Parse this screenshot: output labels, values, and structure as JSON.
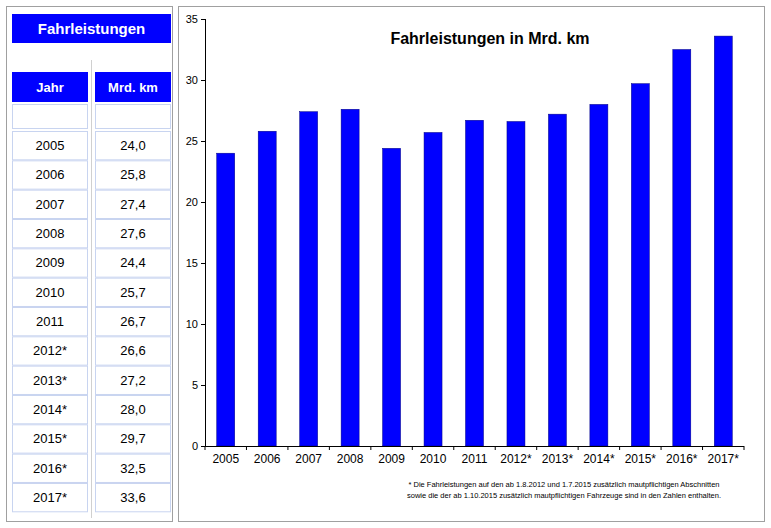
{
  "table": {
    "title": "Fahrleistungen",
    "headers": [
      "Jahr",
      "Mrd. km"
    ],
    "rows": [
      [
        "2005",
        "24,0"
      ],
      [
        "2006",
        "25,8"
      ],
      [
        "2007",
        "27,4"
      ],
      [
        "2008",
        "27,6"
      ],
      [
        "2009",
        "24,4"
      ],
      [
        "2010",
        "25,7"
      ],
      [
        "2011",
        "26,7"
      ],
      [
        "2012*",
        "26,6"
      ],
      [
        "2013*",
        "27,2"
      ],
      [
        "2014*",
        "28,0"
      ],
      [
        "2015*",
        "29,7"
      ],
      [
        "2016*",
        "32,5"
      ],
      [
        "2017*",
        "33,6"
      ]
    ]
  },
  "chart_data": {
    "type": "bar",
    "title": "Fahrleistungen in Mrd. km",
    "categories": [
      "2005",
      "2006",
      "2007",
      "2008",
      "2009",
      "2010",
      "2011",
      "2012*",
      "2013*",
      "2014*",
      "2015*",
      "2016*",
      "2017*"
    ],
    "values": [
      24.0,
      25.8,
      27.4,
      27.6,
      24.4,
      25.7,
      26.7,
      26.6,
      27.2,
      28.0,
      29.7,
      32.5,
      33.6
    ],
    "color": "#0000ff",
    "ylim": [
      0,
      35
    ],
    "yticks": [
      0,
      5,
      10,
      15,
      20,
      25,
      30,
      35
    ],
    "grid": false,
    "annotations": [
      "* Die Fahrleistungen auf den ab 1.8.2012  und 1.7.2015  zusätzlich mautpflichtigen Abschnitten",
      "sowie die der  ab 1.10.2015  zusätzlich mautpflichtigen Fahrzeuge sind in den Zahlen enthalten."
    ]
  }
}
